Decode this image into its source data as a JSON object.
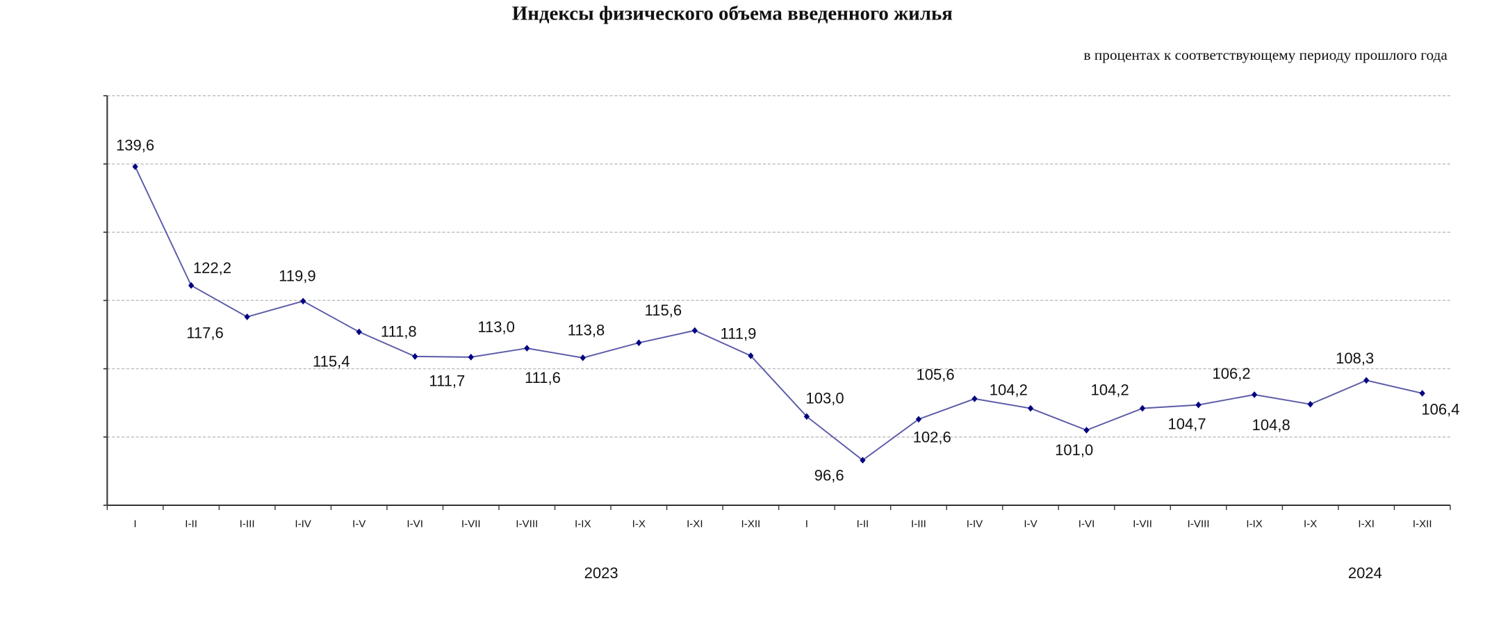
{
  "chart_data": {
    "type": "line",
    "title": "Индексы физического объема введенного жилья",
    "subtitle": "в процентах к соответствующему периоду прошлого года",
    "categories": [
      "I",
      "I-II",
      "I-III",
      "I-IV",
      "I-V",
      "I-VI",
      "I-VII",
      "I-VIII",
      "I-IX",
      "I-X",
      "I-XI",
      "I-XII",
      "I",
      "I-II",
      "I-III",
      "I-IV",
      "I-V",
      "I-VI",
      "I-VII",
      "I-VIII",
      "I-IX",
      "I-X",
      "I-XI",
      "I-XII"
    ],
    "x_groups": [
      "2023",
      "2024"
    ],
    "values": [
      139.6,
      122.2,
      117.6,
      119.9,
      115.4,
      111.8,
      111.7,
      113.0,
      111.6,
      113.8,
      115.6,
      111.9,
      103.0,
      96.6,
      102.6,
      105.6,
      104.2,
      101.0,
      104.2,
      104.7,
      106.2,
      104.8,
      108.3,
      106.4
    ],
    "value_labels": [
      "139,6",
      "122,2",
      "117,6",
      "119,9",
      "115,4",
      "111,8",
      "111,7",
      "113,0",
      "111,6",
      "113,8",
      "115,6",
      "111,9",
      "103,0",
      "96,6",
      "102,6",
      "105,6",
      "104,2",
      "101,0",
      "104,2",
      "104,7",
      "106,2",
      "104,8",
      "108,3",
      "106,4"
    ],
    "color": "#5a5aa8",
    "marker_color": "#000080",
    "ylim": [
      90,
      150
    ],
    "yticks": [
      90,
      100,
      110,
      120,
      130,
      140,
      150
    ],
    "grid": true
  }
}
